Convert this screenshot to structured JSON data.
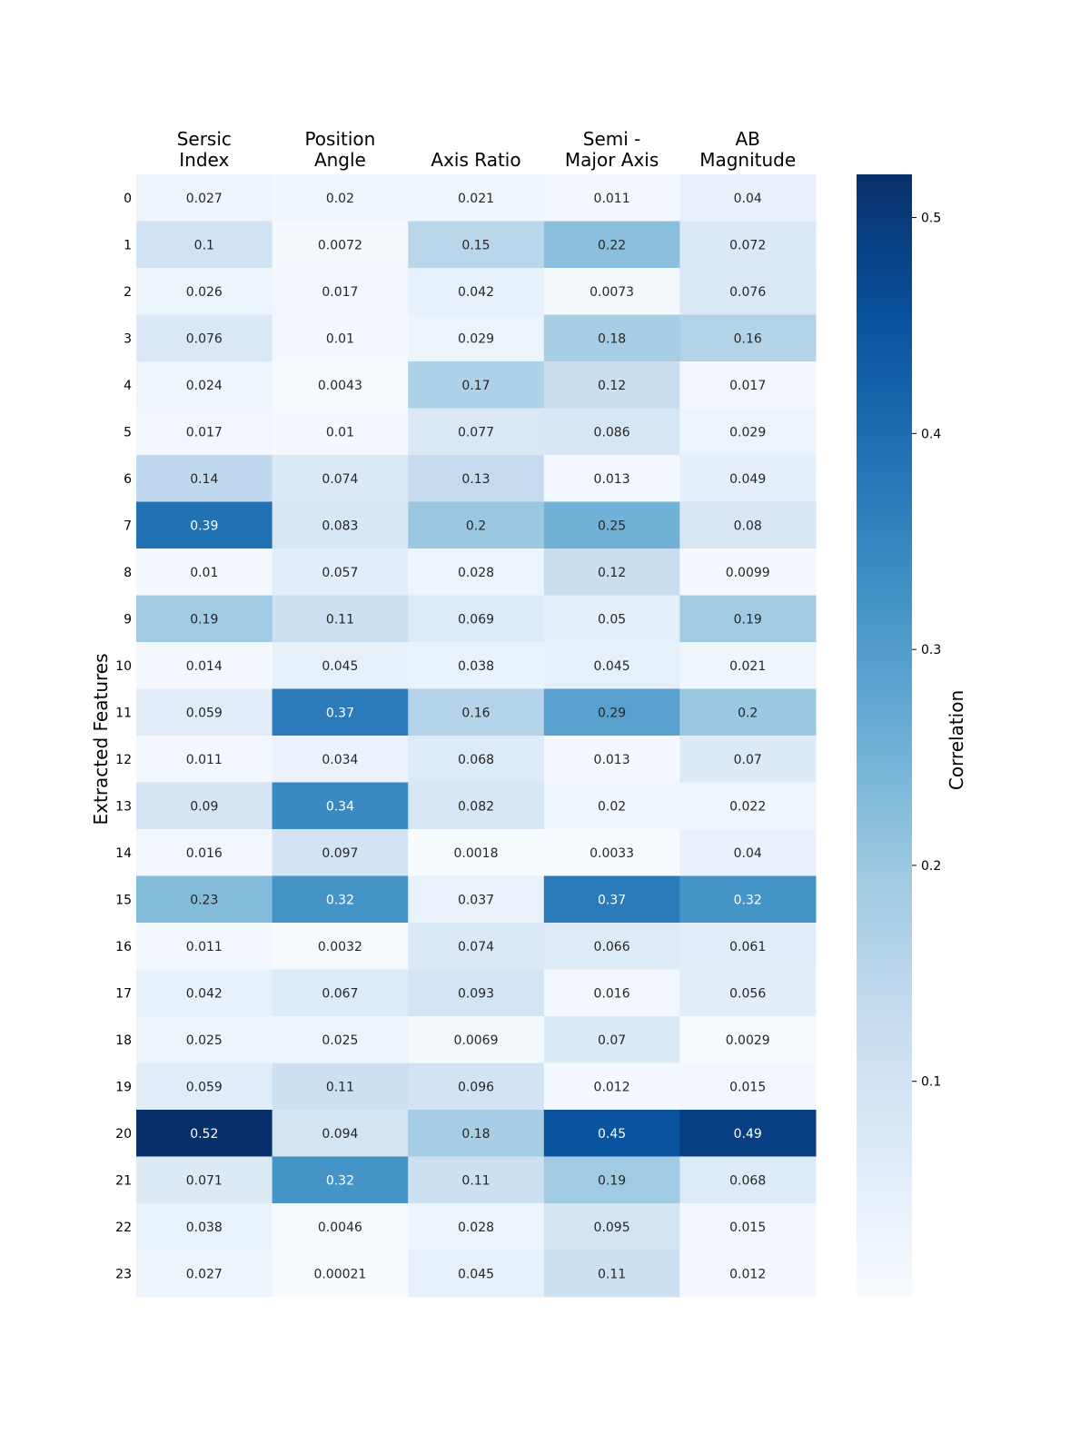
{
  "chart_data": {
    "type": "heatmap",
    "title": "",
    "xlabel": "",
    "ylabel": "Extracted Features",
    "columns": [
      [
        "Sersic",
        "Index"
      ],
      [
        "Position",
        "Angle"
      ],
      [
        "Axis Ratio"
      ],
      [
        "Semi -",
        "Major Axis"
      ],
      [
        "AB",
        "Magnitude"
      ]
    ],
    "rows": [
      "0",
      "1",
      "2",
      "3",
      "4",
      "5",
      "6",
      "7",
      "8",
      "9",
      "10",
      "11",
      "12",
      "13",
      "14",
      "15",
      "16",
      "17",
      "18",
      "19",
      "20",
      "21",
      "22",
      "23"
    ],
    "values": [
      [
        "0.027",
        "0.02",
        "0.021",
        "0.011",
        "0.04"
      ],
      [
        "0.1",
        "0.0072",
        "0.15",
        "0.22",
        "0.072"
      ],
      [
        "0.026",
        "0.017",
        "0.042",
        "0.0073",
        "0.076"
      ],
      [
        "0.076",
        "0.01",
        "0.029",
        "0.18",
        "0.16"
      ],
      [
        "0.024",
        "0.0043",
        "0.17",
        "0.12",
        "0.017"
      ],
      [
        "0.017",
        "0.01",
        "0.077",
        "0.086",
        "0.029"
      ],
      [
        "0.14",
        "0.074",
        "0.13",
        "0.013",
        "0.049"
      ],
      [
        "0.39",
        "0.083",
        "0.2",
        "0.25",
        "0.08"
      ],
      [
        "0.01",
        "0.057",
        "0.028",
        "0.12",
        "0.0099"
      ],
      [
        "0.19",
        "0.11",
        "0.069",
        "0.05",
        "0.19"
      ],
      [
        "0.014",
        "0.045",
        "0.038",
        "0.045",
        "0.021"
      ],
      [
        "0.059",
        "0.37",
        "0.16",
        "0.29",
        "0.2"
      ],
      [
        "0.011",
        "0.034",
        "0.068",
        "0.013",
        "0.07"
      ],
      [
        "0.09",
        "0.34",
        "0.082",
        "0.02",
        "0.022"
      ],
      [
        "0.016",
        "0.097",
        "0.0018",
        "0.0033",
        "0.04"
      ],
      [
        "0.23",
        "0.32",
        "0.037",
        "0.37",
        "0.32"
      ],
      [
        "0.011",
        "0.0032",
        "0.074",
        "0.066",
        "0.061"
      ],
      [
        "0.042",
        "0.067",
        "0.093",
        "0.016",
        "0.056"
      ],
      [
        "0.025",
        "0.025",
        "0.0069",
        "0.07",
        "0.0029"
      ],
      [
        "0.059",
        "0.11",
        "0.096",
        "0.012",
        "0.015"
      ],
      [
        "0.52",
        "0.094",
        "0.18",
        "0.45",
        "0.49"
      ],
      [
        "0.071",
        "0.32",
        "0.11",
        "0.19",
        "0.068"
      ],
      [
        "0.038",
        "0.0046",
        "0.028",
        "0.095",
        "0.015"
      ],
      [
        "0.027",
        "0.00021",
        "0.045",
        "0.11",
        "0.012"
      ]
    ],
    "colorbar": {
      "label": "Correlation",
      "range": [
        0.00021,
        0.52
      ],
      "ticks": [
        "0.1",
        "0.2",
        "0.3",
        "0.4",
        "0.5"
      ],
      "colormap": "Blues"
    },
    "colors": {
      "low": "#f7fbff",
      "high": "#08306b",
      "text_dark": "#262626",
      "text_light": "#ffffff"
    }
  }
}
